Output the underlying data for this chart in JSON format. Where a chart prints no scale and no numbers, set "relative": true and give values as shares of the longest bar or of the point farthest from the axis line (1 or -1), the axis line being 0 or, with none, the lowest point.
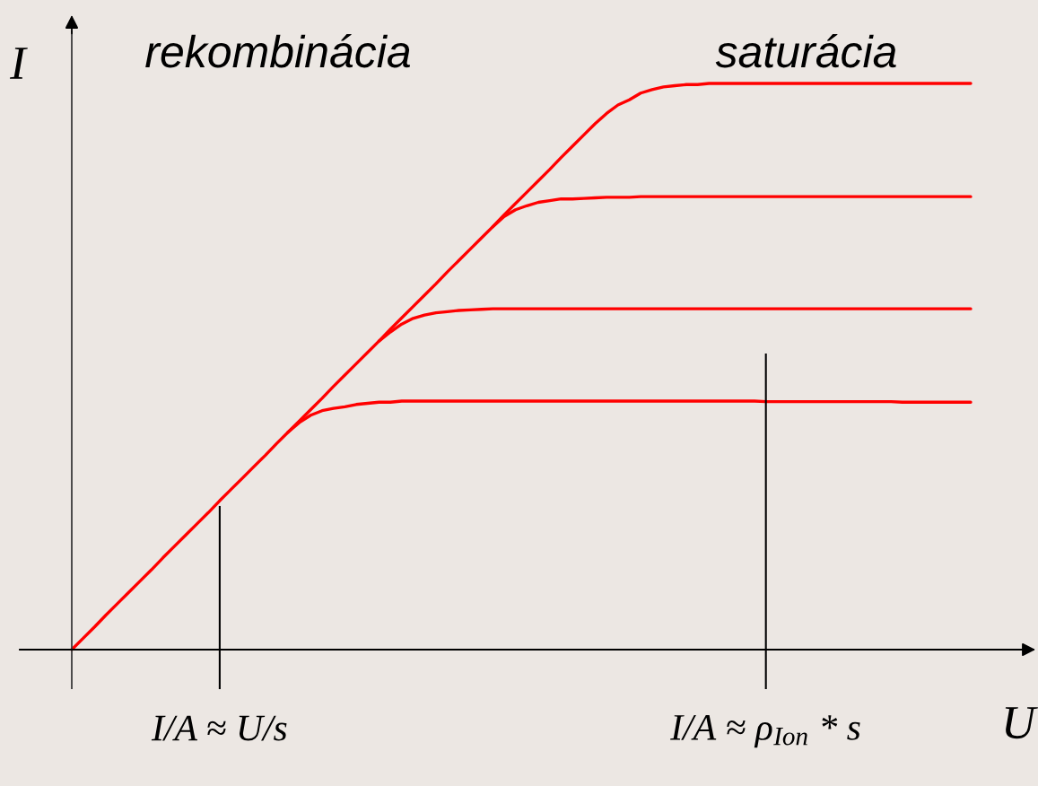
{
  "chart_data": {
    "type": "line",
    "relative": true,
    "xlabel": "U",
    "ylabel": "I",
    "annotations": [
      "rekombinácia",
      "saturácia"
    ],
    "categories": [
      null,
      null,
      null,
      null,
      null,
      null,
      null,
      null,
      null,
      null,
      null,
      null,
      null,
      "I/A ≈ U/s",
      null,
      null,
      null,
      null,
      null,
      null,
      null,
      null,
      null,
      null,
      null,
      null,
      null,
      null,
      null,
      null,
      null,
      null,
      null,
      null,
      null,
      null,
      null,
      null,
      null,
      null,
      null,
      null,
      null,
      null,
      null,
      null,
      null,
      null,
      null,
      null,
      null,
      null,
      null,
      null,
      null,
      null,
      null,
      null,
      null,
      null,
      null,
      "I/A ≈ ρ$_{Ion}$ * s",
      null,
      null,
      null,
      null,
      null,
      null,
      null,
      null,
      null,
      null,
      null,
      null,
      null,
      null,
      null,
      null,
      null,
      null
    ],
    "series": [
      {
        "color": "#ff0000",
        "values": [
          0,
          0.02,
          0.04,
          0.061,
          0.081,
          0.101,
          0.121,
          0.141,
          0.162,
          0.182,
          0.202,
          0.222,
          0.242,
          0.263,
          0.283,
          0.303,
          0.323,
          0.343,
          0.364,
          0.384,
          0.404,
          0.424,
          0.444,
          0.465,
          0.485,
          0.505,
          0.525,
          0.545,
          0.566,
          0.586,
          0.606,
          0.626,
          0.646,
          0.667,
          0.687,
          0.707,
          0.727,
          0.747,
          0.768,
          0.788,
          0.808,
          0.828,
          0.848,
          0.869,
          0.889,
          0.909,
          0.929,
          0.947,
          0.962,
          0.971,
          0.983,
          0.989,
          0.994,
          0.996,
          0.998,
          0.998,
          1.0,
          1.0,
          1.0,
          1.0,
          1.0,
          1.0,
          1.0,
          1.0,
          1.0,
          1.0,
          1.0,
          1.0,
          1.0,
          1.0,
          1.0,
          1.0,
          1.0,
          1.0,
          1.0,
          1.0,
          1.0,
          1.0,
          1.0,
          1.0
        ]
      },
      {
        "color": "#ff0000",
        "values": [
          null,
          null,
          null,
          null,
          null,
          null,
          null,
          null,
          null,
          null,
          null,
          null,
          null,
          null,
          null,
          null,
          null,
          null,
          null,
          null,
          null,
          null,
          null,
          null,
          null,
          null,
          null,
          null,
          null,
          null,
          null,
          null,
          null,
          null,
          null,
          null,
          null,
          0.747,
          0.765,
          0.777,
          0.784,
          0.79,
          0.793,
          0.796,
          0.796,
          0.797,
          0.798,
          0.799,
          0.799,
          0.799,
          0.8,
          0.8,
          0.8,
          0.8,
          0.8,
          0.8,
          0.8,
          0.8,
          0.8,
          0.8,
          0.8,
          0.8,
          0.8,
          0.8,
          0.8,
          0.8,
          0.8,
          0.8,
          0.8,
          0.8,
          0.8,
          0.8,
          0.8,
          0.8,
          0.8,
          0.8,
          0.8,
          0.8,
          0.8,
          0.8
        ]
      },
      {
        "color": "#ff0000",
        "values": [
          null,
          null,
          null,
          null,
          null,
          null,
          null,
          null,
          null,
          null,
          null,
          null,
          null,
          null,
          null,
          null,
          null,
          null,
          null,
          null,
          null,
          null,
          null,
          null,
          null,
          null,
          null,
          0.545,
          0.561,
          0.575,
          0.585,
          0.591,
          0.595,
          0.597,
          0.599,
          0.6,
          0.601,
          0.602,
          0.602,
          0.602,
          0.602,
          0.602,
          0.602,
          0.602,
          0.602,
          0.602,
          0.602,
          0.602,
          0.602,
          0.602,
          0.602,
          0.602,
          0.602,
          0.602,
          0.602,
          0.602,
          0.602,
          0.602,
          0.602,
          0.602,
          0.602,
          0.602,
          0.602,
          0.602,
          0.602,
          0.602,
          0.602,
          0.602,
          0.602,
          0.602,
          0.602,
          0.602,
          0.602,
          0.602,
          0.602,
          0.602,
          0.602,
          0.602,
          0.602,
          0.602
        ]
      },
      {
        "color": "#ff0000",
        "values": [
          null,
          null,
          null,
          null,
          null,
          null,
          null,
          null,
          null,
          null,
          null,
          null,
          null,
          null,
          null,
          null,
          null,
          null,
          null,
          0.384,
          0.401,
          0.414,
          0.422,
          0.426,
          0.429,
          0.433,
          0.435,
          0.437,
          0.437,
          0.439,
          0.439,
          0.439,
          0.439,
          0.439,
          0.439,
          0.439,
          0.439,
          0.439,
          0.439,
          0.439,
          0.439,
          0.439,
          0.439,
          0.439,
          0.439,
          0.439,
          0.439,
          0.439,
          0.439,
          0.439,
          0.439,
          0.439,
          0.439,
          0.439,
          0.439,
          0.439,
          0.439,
          0.439,
          0.439,
          0.439,
          0.439,
          0.438,
          0.438,
          0.438,
          0.438,
          0.438,
          0.438,
          0.438,
          0.438,
          0.438,
          0.438,
          0.438,
          0.438,
          0.437,
          0.437,
          0.437,
          0.437,
          0.437,
          0.437,
          0.437
        ]
      }
    ],
    "ref_lines": [
      {
        "axis": "x",
        "value": "I/A ≈ U/s",
        "color": "#000000"
      },
      {
        "axis": "x",
        "value": "I/A ≈ ρ$_{Ion}$ * s",
        "color": "#000000"
      }
    ]
  }
}
